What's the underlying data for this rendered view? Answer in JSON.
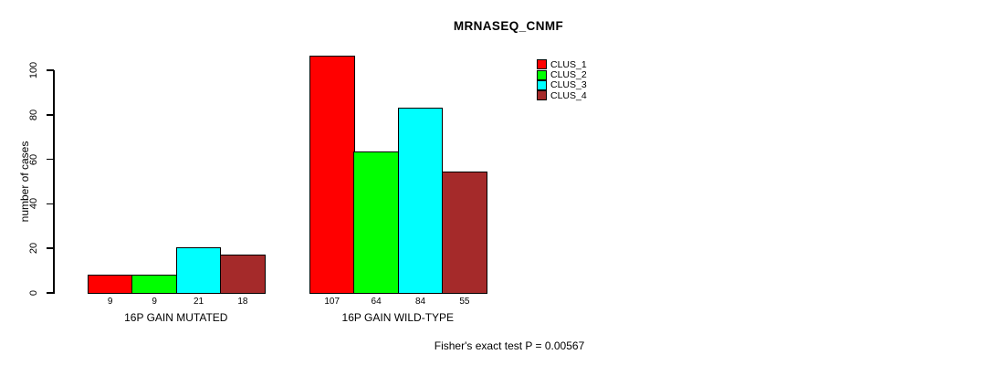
{
  "chart_data": {
    "type": "bar",
    "title": "MRNASEQ_CNMF",
    "ylabel": "number of cases",
    "xlabel": "",
    "yticks": [
      0,
      20,
      40,
      60,
      80,
      100
    ],
    "ylim": [
      0,
      107
    ],
    "grid": false,
    "legend_position": "top-right-inside",
    "categories": [
      "16P GAIN MUTATED",
      "16P GAIN WILD-TYPE"
    ],
    "series": [
      {
        "name": "CLUS_1",
        "color": "#FF0000",
        "values": [
          9,
          107
        ]
      },
      {
        "name": "CLUS_2",
        "color": "#00FF00",
        "values": [
          9,
          64
        ]
      },
      {
        "name": "CLUS_3",
        "color": "#00FFFF",
        "values": [
          21,
          84
        ]
      },
      {
        "name": "CLUS_4",
        "color": "#A52A2A",
        "values": [
          18,
          55
        ]
      }
    ],
    "bar_value_labels_shown": true,
    "footnote": "Fisher's exact test P = 0.00567"
  }
}
